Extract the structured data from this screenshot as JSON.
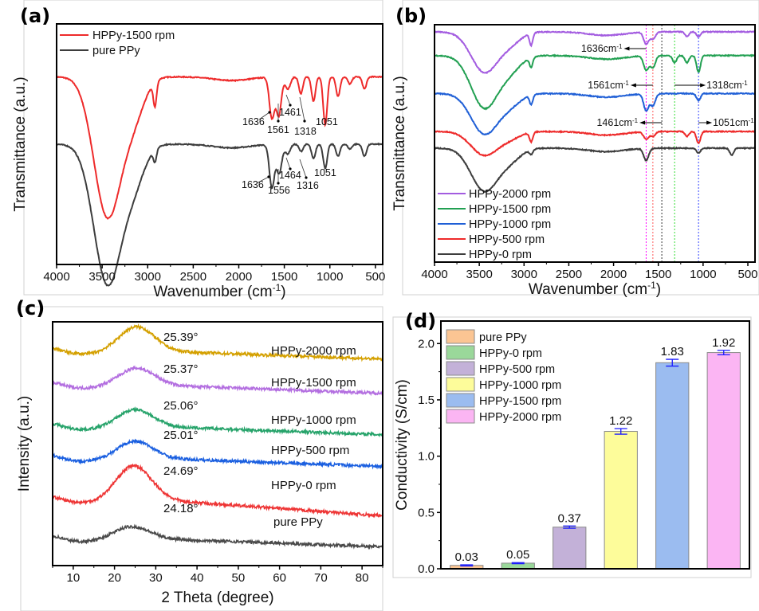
{
  "chart_data": [
    {
      "id": "a",
      "type": "line",
      "panel_label": "(a)",
      "xlabel": "Wavenumber (cm",
      "xlabel_sup": "-1",
      "xlabel_close": ")",
      "ylabel": "Transmittance (a.u.)",
      "xlim": [
        4000,
        420
      ],
      "x_reversed": true,
      "xticks": [
        4000,
        3500,
        3000,
        2500,
        2000,
        1500,
        1000,
        500
      ],
      "legend": {
        "position": "top-left",
        "entries": [
          {
            "name": "HPPy-1500 rpm",
            "color": "#ee2a2a"
          },
          {
            "name": "pure PPy",
            "color": "#3d3d3d"
          }
        ]
      },
      "series": [
        {
          "name": "HPPy-1500 rpm",
          "color": "#ee2a2a",
          "offset": 0.78,
          "band_depths": {
            "3440": 0.58,
            "2920": 0.1,
            "1636": 0.17,
            "1561": 0.16,
            "1461": 0.05,
            "1318": 0.07,
            "1180": 0.1,
            "1051": 0.2,
            "910": 0.08,
            "780": 0.03,
            "620": 0.05
          }
        },
        {
          "name": "pure PPy",
          "color": "#3d3d3d",
          "offset": 0.5,
          "band_depths": {
            "3440": 0.58,
            "2920": 0.05,
            "1636": 0.18,
            "1556": 0.12,
            "1464": 0.04,
            "1316": 0.03,
            "1180": 0.06,
            "1051": 0.1,
            "910": 0.05,
            "780": 0.02,
            "620": 0.05
          }
        }
      ],
      "annotations": [
        {
          "series": "HPPy-1500 rpm",
          "labels": [
            "1636",
            "1561",
            "1461",
            "1318",
            "1051"
          ]
        },
        {
          "series": "pure PPy",
          "labels": [
            "1636",
            "1556",
            "1464",
            "1316",
            "1051"
          ]
        }
      ]
    },
    {
      "id": "b",
      "type": "line",
      "panel_label": "(b)",
      "xlabel": "Wavenumber (cm",
      "xlabel_sup": "-1",
      "xlabel_close": ")",
      "ylabel": "Transmittance (a.u.)",
      "xlim": [
        4000,
        420
      ],
      "x_reversed": true,
      "xticks": [
        4000,
        3500,
        3000,
        2500,
        2000,
        1500,
        1000,
        500
      ],
      "legend": {
        "position": "bottom-left",
        "entries": [
          {
            "name": "HPPy-2000 rpm",
            "color": "#a35ce0"
          },
          {
            "name": "HPPy-1500 rpm",
            "color": "#22a052"
          },
          {
            "name": "HPPy-1000 rpm",
            "color": "#1f5fd6"
          },
          {
            "name": "HPPy-500 rpm",
            "color": "#ee2a2a"
          },
          {
            "name": "HPPy-0 rpm",
            "color": "#3d3d3d"
          }
        ]
      },
      "series": [
        {
          "name": "HPPy-2000 rpm",
          "color": "#a35ce0",
          "offset": 0.97,
          "band_depths": {
            "3440": 0.17,
            "2920": 0.05,
            "1636": 0.05,
            "1561": 0.03,
            "1180": 0.02,
            "1051": 0.02
          }
        },
        {
          "name": "HPPy-1500 rpm",
          "color": "#22a052",
          "offset": 0.87,
          "band_depths": {
            "3440": 0.22,
            "2920": 0.04,
            "1636": 0.06,
            "1561": 0.05,
            "1318": 0.03,
            "1180": 0.03,
            "1051": 0.07
          }
        },
        {
          "name": "HPPy-1000 rpm",
          "color": "#1f5fd6",
          "offset": 0.71,
          "band_depths": {
            "3440": 0.17,
            "2920": 0.04,
            "1636": 0.07,
            "1561": 0.05,
            "1051": 0.03
          }
        },
        {
          "name": "HPPy-500 rpm",
          "color": "#ee2a2a",
          "offset": 0.55,
          "band_depths": {
            "3440": 0.1,
            "2920": 0.04,
            "1636": 0.03,
            "1561": 0.02,
            "1180": 0.02,
            "1051": 0.05
          }
        },
        {
          "name": "HPPy-0 rpm",
          "color": "#3d3d3d",
          "offset": 0.48,
          "band_depths": {
            "3440": 0.18,
            "2920": 0.02,
            "1636": 0.05,
            "1051": 0.02,
            "680": 0.03
          }
        }
      ],
      "reference_lines": [
        {
          "wavenumber": 1636,
          "color": "#ff00ff"
        },
        {
          "wavenumber": 1561,
          "color": "#ff5a5a"
        },
        {
          "wavenumber": 1461,
          "color": "#333333"
        },
        {
          "wavenumber": 1318,
          "color": "#33dd33"
        },
        {
          "wavenumber": 1051,
          "color": "#3344ff"
        }
      ],
      "annotations": [
        {
          "text": "1636cm",
          "sup": "-1",
          "direction": "left",
          "wavenumber": 1636
        },
        {
          "text": "1561cm",
          "sup": "-1",
          "direction": "left",
          "wavenumber": 1561
        },
        {
          "text": "1318cm",
          "sup": "-1",
          "direction": "right",
          "wavenumber": 1318
        },
        {
          "text": "1461cm",
          "sup": "-1",
          "direction": "left",
          "wavenumber": 1461
        },
        {
          "text": "1051cm",
          "sup": "-1",
          "direction": "right",
          "wavenumber": 1051
        }
      ]
    },
    {
      "id": "c",
      "type": "line",
      "panel_label": "(c)",
      "xlabel": "2 Theta (degree)",
      "ylabel": "Intensity (a.u.)",
      "xlim": [
        5,
        85
      ],
      "xticks": [
        10,
        20,
        30,
        40,
        50,
        60,
        70,
        80
      ],
      "series": [
        {
          "name": "HPPy-2000 rpm",
          "color": "#d4a000",
          "peak": "25.39°",
          "peak_x": 25.39,
          "offset": 0.88,
          "height": 0.1
        },
        {
          "name": "HPPy-1500 rpm",
          "color": "#b36ee0",
          "peak": "25.37°",
          "peak_x": 25.37,
          "offset": 0.74,
          "height": 0.07
        },
        {
          "name": "HPPy-1000 rpm",
          "color": "#26a36a",
          "peak": "25.06°",
          "peak_x": 25.06,
          "offset": 0.57,
          "height": 0.07
        },
        {
          "name": "HPPy-500 rpm",
          "color": "#1a5fe0",
          "peak": "25.01°",
          "peak_x": 25.01,
          "offset": 0.44,
          "height": 0.07
        },
        {
          "name": "HPPy-0 rpm",
          "color": "#ee3535",
          "peak": "24.69°",
          "peak_x": 24.69,
          "offset": 0.27,
          "height": 0.14
        },
        {
          "name": "pure PPy",
          "color": "#4a4a4a",
          "peak": "24.18°",
          "peak_x": 24.18,
          "offset": 0.11,
          "height": 0.05
        }
      ]
    },
    {
      "id": "d",
      "type": "bar",
      "panel_label": "(d)",
      "xlabel": "",
      "ylabel": "Conductivity (S/cm)",
      "ylim": [
        0,
        2.2
      ],
      "yticks": [
        "0.0",
        "0.5",
        "1.0",
        "1.5",
        "2.0"
      ],
      "categories": [
        "pure PPy",
        "HPPy-0 rpm",
        "HPPy-500 rpm",
        "HPPy-1000 rpm",
        "HPPy-1500 rpm",
        "HPPy-2000 rpm"
      ],
      "values": [
        0.03,
        0.05,
        0.37,
        1.22,
        1.83,
        1.92
      ],
      "value_labels": [
        "0.03",
        "0.05",
        "0.37",
        "1.22",
        "1.83",
        "1.92"
      ],
      "errors": [
        0.005,
        0.005,
        0.01,
        0.025,
        0.03,
        0.02
      ],
      "colors": [
        "#fbc593",
        "#9ad89a",
        "#c3b1d8",
        "#fdfc9a",
        "#9bbcf0",
        "#fbb5f3"
      ],
      "error_bar_color": "#1a1aff",
      "legend": {
        "position": "top-left"
      }
    }
  ]
}
